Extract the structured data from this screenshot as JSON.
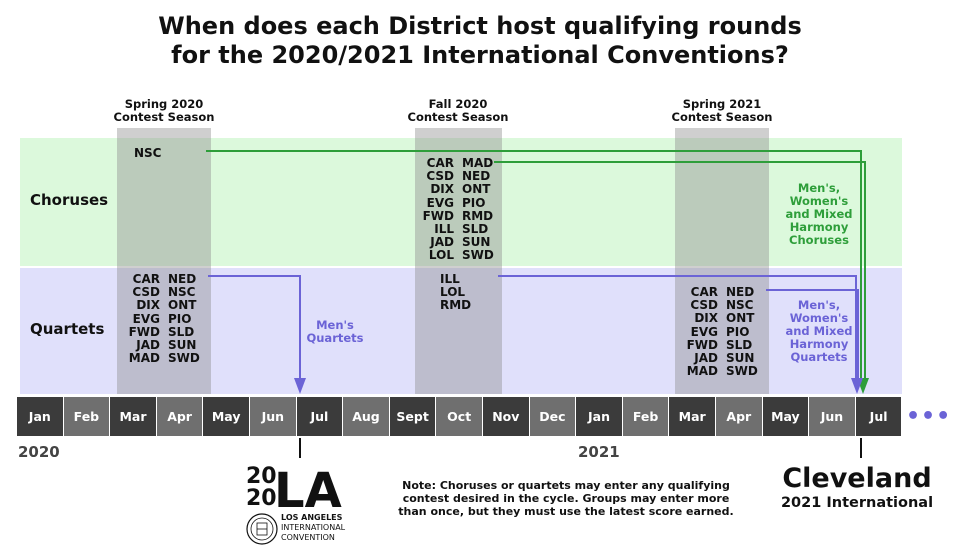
{
  "title": {
    "line1": "When does each District host qualifying rounds",
    "line2": "for the 2020/2021 International Conventions?"
  },
  "rows": {
    "choruses": "Choruses",
    "quartets": "Quartets"
  },
  "seasons": [
    {
      "line1": "Spring 2020",
      "line2": "Contest Season"
    },
    {
      "line1": "Fall 2020",
      "line2": "Contest Season"
    },
    {
      "line1": "Spring 2021",
      "line2": "Contest Season"
    }
  ],
  "districts": {
    "spring2020_choruses": [
      [
        "NSC",
        ""
      ]
    ],
    "fall2020_choruses": [
      [
        "CAR",
        "MAD"
      ],
      [
        "CSD",
        "NED"
      ],
      [
        "DIX",
        "ONT"
      ],
      [
        "EVG",
        "PIO"
      ],
      [
        "FWD",
        "RMD"
      ],
      [
        "ILL",
        "SLD"
      ],
      [
        "JAD",
        "SUN"
      ],
      [
        "LOL",
        "SWD"
      ]
    ],
    "spring2020_quartets": [
      [
        "CAR",
        "NED"
      ],
      [
        "CSD",
        "NSC"
      ],
      [
        "DIX",
        "ONT"
      ],
      [
        "EVG",
        "PIO"
      ],
      [
        "FWD",
        "SLD"
      ],
      [
        "JAD",
        "SUN"
      ],
      [
        "MAD",
        "SWD"
      ]
    ],
    "fall2020_quartets": [
      [
        "ILL",
        ""
      ],
      [
        "LOL",
        ""
      ],
      [
        "RMD",
        ""
      ]
    ],
    "spring2021_quartets": [
      [
        "CAR",
        "NED"
      ],
      [
        "CSD",
        "NSC"
      ],
      [
        "DIX",
        "ONT"
      ],
      [
        "EVG",
        "PIO"
      ],
      [
        "FWD",
        "SLD"
      ],
      [
        "JAD",
        "SUN"
      ],
      [
        "MAD",
        "SWD"
      ]
    ]
  },
  "months": [
    "Jan",
    "Feb",
    "Mar",
    "Apr",
    "May",
    "Jun",
    "Jul",
    "Aug",
    "Sept",
    "Oct",
    "Nov",
    "Dec",
    "Jan",
    "Feb",
    "Mar",
    "Apr",
    "May",
    "Jun",
    "Jul"
  ],
  "years": [
    "2020",
    "2021"
  ],
  "events": {
    "mens_quartets": [
      "Men's",
      "Quartets"
    ],
    "harmony_choruses": [
      "Men's,",
      "Women's",
      "and Mixed",
      "Harmony",
      "Choruses"
    ],
    "harmony_quartets": [
      "Men's,",
      "Women's",
      "and Mixed",
      "Harmony",
      "Quartets"
    ]
  },
  "note": [
    "Note: Choruses or quartets may enter any qualifying",
    "contest desired in the cycle. Groups may enter more",
    "than once, but they must use the latest score earned."
  ],
  "cleveland": {
    "city": "Cleveland",
    "sub": "2021 International"
  },
  "logo": {
    "line1": "LOS ANGELES",
    "line2": "INTERNATIONAL",
    "line3": "CONVENTION"
  },
  "more": "•••",
  "colors": {
    "chorus_band": "#dcf9dc",
    "quartet_band": "#e0e0fb",
    "chorus_line": "#2e9e3a",
    "quartet_line": "#6b63d6",
    "chorus_text": "#2e9e3a",
    "quartet_text": "#6b63d6",
    "month_dark": "#3b3b3b",
    "month_light": "#6f6f6f"
  }
}
